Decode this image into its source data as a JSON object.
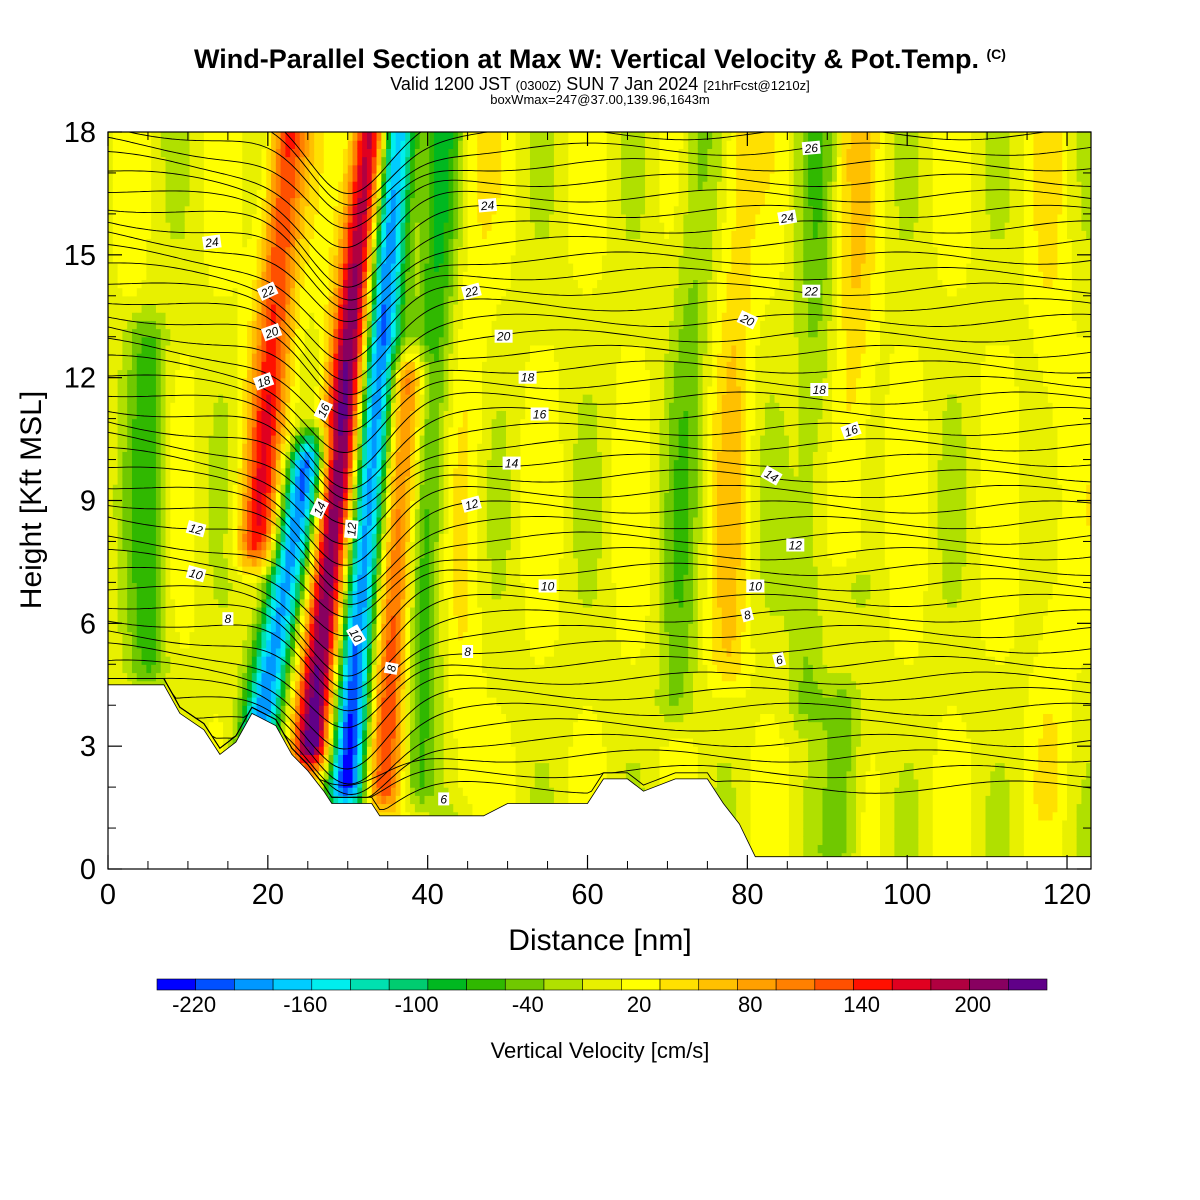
{
  "title": {
    "main": "Wind-Parallel Section at Max W: Vertical Velocity & Pot.Temp.",
    "copyright": "(C)",
    "valid_prefix": "Valid 1200 JST",
    "valid_utc": "(0300Z)",
    "valid_date": "SUN 7 Jan 2024",
    "forecast": "[21hrFcst@1210z]",
    "box_info": "boxWmax=247@37.00,139.96,1643m"
  },
  "chart_data": {
    "type": "heatmap",
    "xlabel": "Distance [nm]",
    "ylabel": "Height [Kft MSL]",
    "xlim": [
      0,
      123
    ],
    "ylim": [
      0,
      18
    ],
    "x_ticks": [
      0,
      20,
      40,
      60,
      80,
      100,
      120
    ],
    "y_ticks": [
      0,
      3,
      6,
      9,
      12,
      15,
      18
    ],
    "colorbar": {
      "label": "Vertical Velocity [cm/s]",
      "min": -240,
      "max": 240,
      "step": 20,
      "tick_labels": [
        "-220",
        "-160",
        "-100",
        "-40",
        "20",
        "80",
        "140",
        "200"
      ],
      "tick_values": [
        -220,
        -160,
        -100,
        -40,
        20,
        80,
        140,
        200
      ],
      "colors": [
        "#0000ff",
        "#0050ff",
        "#0098ff",
        "#00ccff",
        "#00eeee",
        "#00e0b0",
        "#00cc70",
        "#00b820",
        "#30b800",
        "#70c800",
        "#b0e000",
        "#e8f000",
        "#ffff00",
        "#ffe000",
        "#ffc000",
        "#ffa000",
        "#ff8000",
        "#ff5000",
        "#ff1000",
        "#e00020",
        "#b00040",
        "#880060",
        "#600088"
      ]
    },
    "terrain_kft": [
      [
        0,
        4.5
      ],
      [
        7,
        4.5
      ],
      [
        9,
        3.8
      ],
      [
        12,
        3.4
      ],
      [
        14,
        2.8
      ],
      [
        16,
        3.1
      ],
      [
        18,
        3.8
      ],
      [
        21,
        3.5
      ],
      [
        23,
        2.8
      ],
      [
        25,
        2.4
      ],
      [
        27,
        1.9
      ],
      [
        28,
        1.6
      ],
      [
        30,
        1.6
      ],
      [
        33,
        1.6
      ],
      [
        34,
        1.3
      ],
      [
        44,
        1.3
      ],
      [
        47,
        1.3
      ],
      [
        50,
        1.6
      ],
      [
        60,
        1.6
      ],
      [
        62,
        2.2
      ],
      [
        65,
        2.2
      ],
      [
        67,
        1.9
      ],
      [
        71,
        2.2
      ],
      [
        75,
        2.2
      ],
      [
        77,
        1.6
      ],
      [
        79,
        1.1
      ],
      [
        80,
        0.7
      ],
      [
        81,
        0.3
      ],
      [
        123,
        0.3
      ]
    ],
    "w_features": [
      {
        "x": 28.5,
        "z_range": [
          3,
          18
        ],
        "w": 220,
        "slope": 0.25
      },
      {
        "x": 32.5,
        "z_range": [
          2,
          18
        ],
        "w": -220,
        "slope": 0.2
      },
      {
        "x": 36.5,
        "z_range": [
          2,
          12
        ],
        "w": 130,
        "slope": 0.15
      },
      {
        "x": 40,
        "z_range": [
          2,
          18
        ],
        "w": -70,
        "slope": 0.1
      },
      {
        "x": 24,
        "z_range": [
          2,
          10
        ],
        "w": -190,
        "slope": 0.45
      },
      {
        "x": 19,
        "z_range": [
          8,
          18
        ],
        "w": 130,
        "slope": 0.2
      },
      {
        "x": 45,
        "z_range": [
          2,
          18
        ],
        "w": 20,
        "slope": 0.05
      },
      {
        "x": 72,
        "z_range": [
          4,
          18
        ],
        "w": -40,
        "slope": 0.1
      },
      {
        "x": 78,
        "z_range": [
          5,
          18
        ],
        "w": 40,
        "slope": 0.05
      },
      {
        "x": 88,
        "z_range": [
          4,
          18
        ],
        "w": -40,
        "slope": 0.05
      },
      {
        "x": 93,
        "z_range": [
          8,
          18
        ],
        "w": 40,
        "slope": 0.05
      },
      {
        "x": 5,
        "z_range": [
          5,
          13
        ],
        "w": -60,
        "slope": 0.0
      },
      {
        "x": 92,
        "z_range": [
          0.5,
          4
        ],
        "w": -50,
        "slope": 0.0
      },
      {
        "x": 118,
        "z_range": [
          2,
          18
        ],
        "w": 20,
        "slope": 0.0
      }
    ],
    "isentropes": {
      "levels": [
        6,
        8,
        10,
        12,
        14,
        16,
        18,
        20,
        22,
        24,
        26
      ],
      "labels": [
        {
          "text": "24",
          "x": 13,
          "z": 15.3,
          "angle": -8
        },
        {
          "text": "22",
          "x": 20,
          "z": 14.1,
          "angle": -25
        },
        {
          "text": "20",
          "x": 20.5,
          "z": 13.1,
          "angle": -20
        },
        {
          "text": "18",
          "x": 19.5,
          "z": 11.9,
          "angle": -20
        },
        {
          "text": "16",
          "x": 27,
          "z": 11.2,
          "angle": -65
        },
        {
          "text": "14",
          "x": 26.5,
          "z": 8.8,
          "angle": -65
        },
        {
          "text": "12",
          "x": 30.5,
          "z": 8.3,
          "angle": -85
        },
        {
          "text": "10",
          "x": 31,
          "z": 5.7,
          "angle": 60
        },
        {
          "text": "8",
          "x": 35.5,
          "z": 4.9,
          "angle": -80
        },
        {
          "text": "6",
          "x": 42,
          "z": 1.7,
          "angle": 0
        },
        {
          "text": "8",
          "x": 45,
          "z": 5.3,
          "angle": 0
        },
        {
          "text": "10",
          "x": 55,
          "z": 6.9,
          "angle": 0
        },
        {
          "text": "12",
          "x": 45.5,
          "z": 8.9,
          "angle": -15
        },
        {
          "text": "14",
          "x": 50.5,
          "z": 9.9,
          "angle": 0
        },
        {
          "text": "16",
          "x": 54,
          "z": 11.1,
          "angle": 0
        },
        {
          "text": "18",
          "x": 52.5,
          "z": 12.0,
          "angle": 0
        },
        {
          "text": "20",
          "x": 49.5,
          "z": 13.0,
          "angle": 0
        },
        {
          "text": "22",
          "x": 45.5,
          "z": 14.1,
          "angle": -15
        },
        {
          "text": "24",
          "x": 47.5,
          "z": 16.2,
          "angle": -5
        },
        {
          "text": "26",
          "x": 88,
          "z": 17.6,
          "angle": -5
        },
        {
          "text": "24",
          "x": 85,
          "z": 15.9,
          "angle": -10
        },
        {
          "text": "22",
          "x": 88,
          "z": 14.1,
          "angle": 0
        },
        {
          "text": "20",
          "x": 80,
          "z": 13.4,
          "angle": 25
        },
        {
          "text": "18",
          "x": 89,
          "z": 11.7,
          "angle": 0
        },
        {
          "text": "16",
          "x": 93,
          "z": 10.7,
          "angle": -20
        },
        {
          "text": "14",
          "x": 83,
          "z": 9.6,
          "angle": 30
        },
        {
          "text": "12",
          "x": 86,
          "z": 7.9,
          "angle": 0
        },
        {
          "text": "10",
          "x": 81,
          "z": 6.9,
          "angle": 0
        },
        {
          "text": "8",
          "x": 80,
          "z": 6.2,
          "angle": -15
        },
        {
          "text": "6",
          "x": 84,
          "z": 5.1,
          "angle": -15
        },
        {
          "text": "12",
          "x": 11,
          "z": 8.3,
          "angle": 15
        },
        {
          "text": "10",
          "x": 11,
          "z": 7.2,
          "angle": 15
        },
        {
          "text": "8",
          "x": 15,
          "z": 6.1,
          "angle": 0
        }
      ]
    }
  }
}
